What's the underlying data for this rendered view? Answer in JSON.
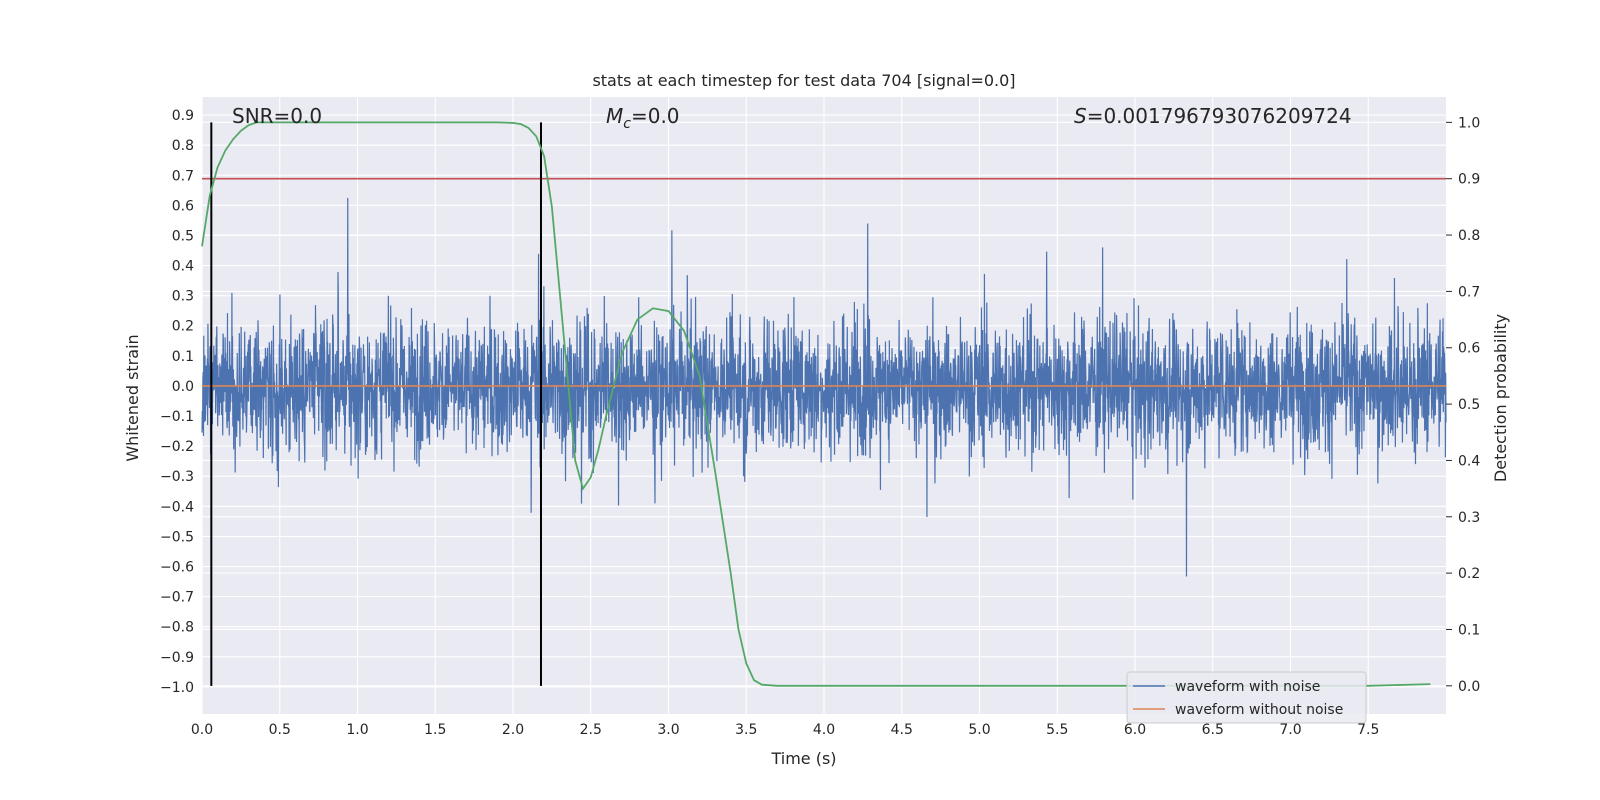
{
  "chart_data": {
    "type": "line",
    "title": "stats at each timestep for test data 704 [signal=0.0]",
    "xlabel": "Time (s)",
    "ylabel_left": "Whitened strain",
    "ylabel_right": "Detection probability",
    "xlim": [
      0.0,
      8.0
    ],
    "ylim_left": [
      -1.09,
      0.96
    ],
    "ylim_right": [
      -0.05,
      1.045
    ],
    "x_ticks": [
      "0.0",
      "0.5",
      "1.0",
      "1.5",
      "2.0",
      "2.5",
      "3.0",
      "3.5",
      "4.0",
      "4.5",
      "5.0",
      "5.5",
      "6.0",
      "6.5",
      "7.0",
      "7.5"
    ],
    "y_left_ticks": [
      "0.9",
      "0.8",
      "0.7",
      "0.6",
      "0.5",
      "0.4",
      "0.3",
      "0.2",
      "0.1",
      "0.0",
      "−0.1",
      "−0.2",
      "−0.3",
      "−0.4",
      "−0.5",
      "−0.6",
      "−0.7",
      "−0.8",
      "−0.9",
      "−1.0"
    ],
    "y_right_ticks": [
      "1.0",
      "0.9",
      "0.8",
      "0.7",
      "0.6",
      "0.5",
      "0.4",
      "0.3",
      "0.2",
      "0.1",
      "0.0"
    ],
    "grid": true,
    "legend_position": "bottom-right",
    "annotations": {
      "snr": "SNR=0.0",
      "mc_symbol": "M",
      "mc_sub": "c",
      "mc_value": "=0.0",
      "s_symbol": "S",
      "s_value": "=0.001796793076209724"
    },
    "vertical_markers": [
      0.06,
      2.18
    ],
    "threshold_probability": 0.9,
    "colors": {
      "noise": "#4c72b0",
      "no_noise": "#dd8452",
      "probability": "#55a868",
      "threshold": "#c44e52",
      "marker": "#000000",
      "background": "#eaeaf2",
      "grid": "#ffffff"
    },
    "series": [
      {
        "name": "waveform with noise",
        "axis": "left",
        "style": "noise",
        "x_start": 0.0,
        "x_end": 8.0,
        "std": 0.2,
        "clip": [
          -1.0,
          0.9
        ]
      },
      {
        "name": "waveform without noise",
        "axis": "left",
        "x": [
          0.0,
          8.0
        ],
        "values": [
          0.0,
          0.0
        ]
      },
      {
        "name": "detection probability",
        "axis": "right",
        "x": [
          0.0,
          0.05,
          0.1,
          0.15,
          0.2,
          0.25,
          0.3,
          0.35,
          0.4,
          0.6,
          1.0,
          1.5,
          1.8,
          1.9,
          2.0,
          2.05,
          2.1,
          2.15,
          2.2,
          2.25,
          2.3,
          2.35,
          2.4,
          2.45,
          2.5,
          2.55,
          2.6,
          2.7,
          2.8,
          2.9,
          3.0,
          3.1,
          3.2,
          3.3,
          3.4,
          3.45,
          3.5,
          3.55,
          3.6,
          3.7,
          4.0,
          5.0,
          6.0,
          7.0,
          7.5,
          7.9
        ],
        "values": [
          0.78,
          0.87,
          0.92,
          0.95,
          0.97,
          0.985,
          0.995,
          1.0,
          1.0,
          1.0,
          1.0,
          1.0,
          1.0,
          1.0,
          0.999,
          0.997,
          0.99,
          0.975,
          0.94,
          0.85,
          0.7,
          0.55,
          0.4,
          0.35,
          0.37,
          0.42,
          0.48,
          0.59,
          0.65,
          0.67,
          0.665,
          0.63,
          0.55,
          0.38,
          0.2,
          0.1,
          0.04,
          0.01,
          0.002,
          0.0,
          0.0,
          0.0,
          0.0,
          0.0,
          0.0,
          0.003
        ]
      }
    ]
  }
}
